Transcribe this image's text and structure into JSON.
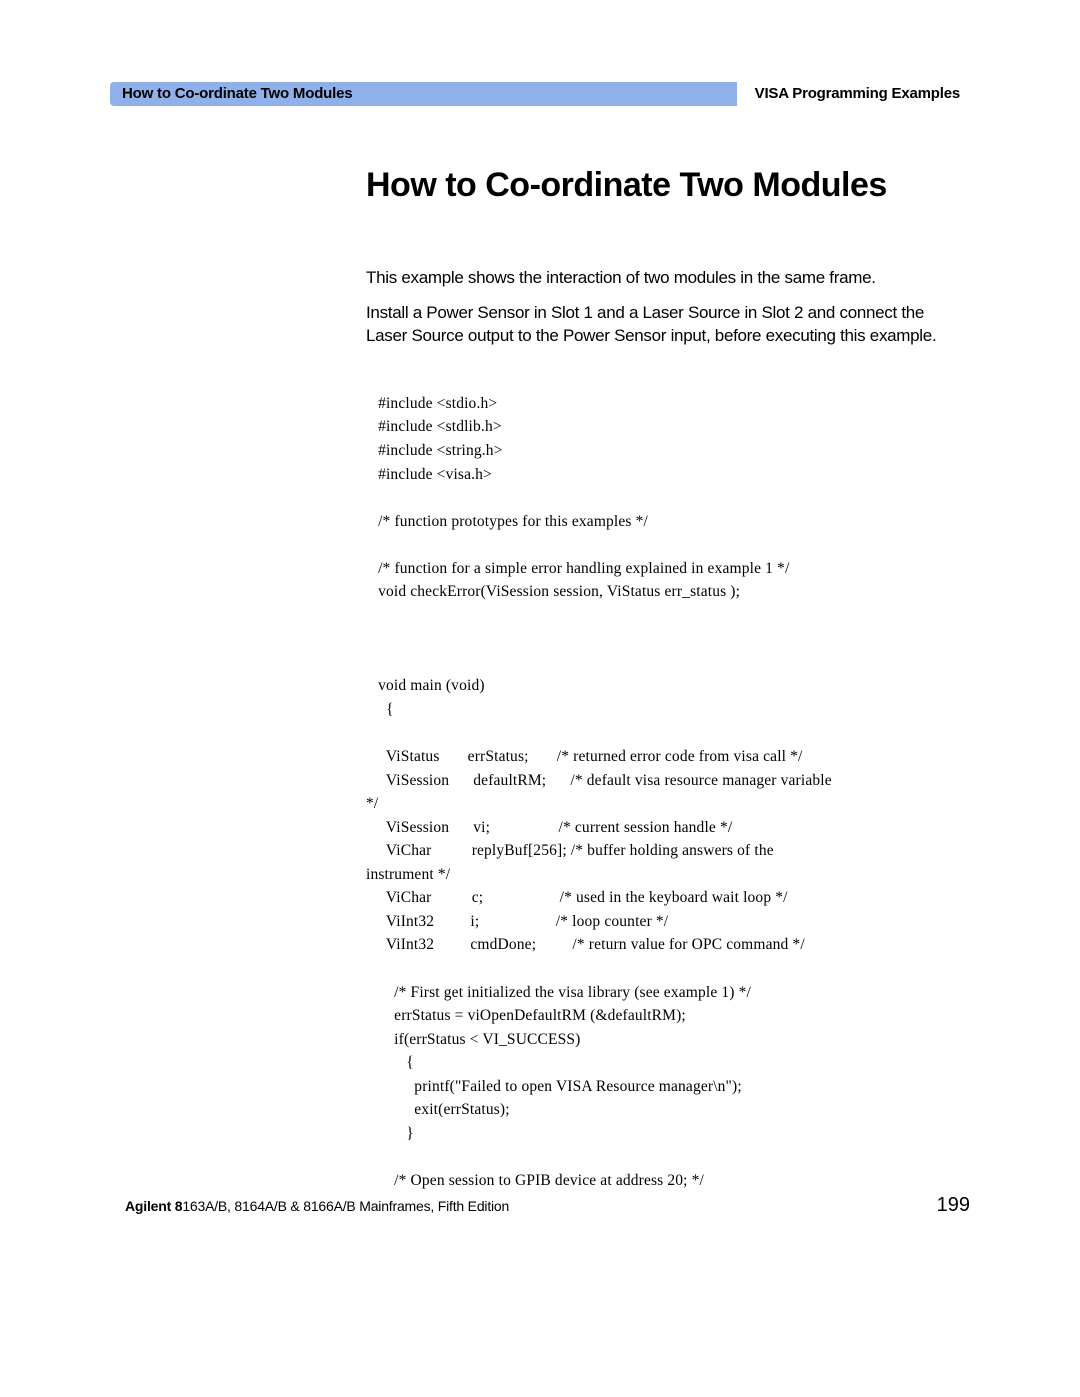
{
  "header": {
    "left": "How to Co-ordinate Two Modules",
    "right": "VISA Programming Examples",
    "left_bg": "#8fb0e8",
    "right_bg": "#ffffff"
  },
  "title": "How to Co-ordinate Two Modules",
  "intro1": "This example shows the interaction of two modules in the same frame.",
  "intro2": "Install a Power Sensor in Slot 1 and a Laser Source in Slot 2 and connect the Laser Source output to the Power Sensor input, before executing this example.",
  "code": "   #include <stdio.h>\n   #include <stdlib.h>\n   #include <string.h>\n   #include <visa.h>\n\n   /* function prototypes for this examples */\n\n   /* function for a simple error handling explained in example 1 */\n   void checkError(ViSession session, ViStatus err_status );\n\n\n\n   void main (void)\n     {\n\n     ViStatus       errStatus;       /* returned error code from visa call */\n     ViSession      defaultRM;      /* default visa resource manager variable \n*/\n     ViSession      vi;                 /* current session handle */\n     ViChar          replyBuf[256]; /* buffer holding answers of the \ninstrument */\n     ViChar          c;                   /* used in the keyboard wait loop */\n     ViInt32         i;                   /* loop counter */\n     ViInt32         cmdDone;         /* return value for OPC command */\n\n       /* First get initialized the visa library (see example 1) */\n       errStatus = viOpenDefaultRM (&defaultRM);\n       if(errStatus < VI_SUCCESS)\n          {\n            printf(\"Failed to open VISA Resource manager\\n\"); \n            exit(errStatus); \n          }\n\n       /* Open session to GPIB device at address 20; */",
  "footer": {
    "product_bold": "Agilent 8",
    "product_rest": "163A/B, 8164A/B & 8166A/B Mainframes, Fifth Edition",
    "page_number": "199"
  },
  "style": {
    "page_bg": "#ffffff",
    "text_color": "#000000",
    "title_fontsize": 34,
    "body_fontsize": 17,
    "code_fontsize": 15.5,
    "header_fontsize": 15,
    "footer_left_fontsize": 14,
    "footer_page_fontsize": 20
  }
}
